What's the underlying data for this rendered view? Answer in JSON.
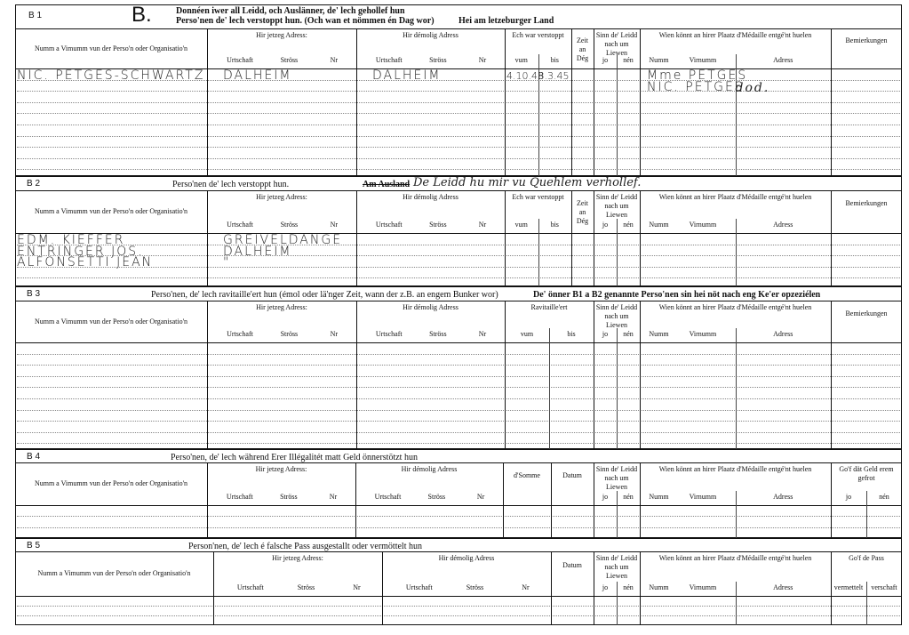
{
  "sections": [
    {
      "label": "B 1",
      "letter": "B.",
      "title_lines": [
        "Donnéen iwer all Leidd, och Auslänner, de' lech gehollef hun",
        "Perso'nen de' lech verstoppt hun. (Och wan et nömmen én Dag wor)"
      ],
      "subtitle": "Hei am letzeburger Land",
      "columns": [
        {
          "label": "Numm a Vimumm vun der Perso'n oder Organisatio'n",
          "subs": []
        },
        {
          "label": "Hir jetzeg Adress:",
          "subs": [
            "Urtschaft",
            "Ströss",
            "Nr"
          ]
        },
        {
          "label": "Hir démolig Adress",
          "subs": [
            "Urtschaft",
            "Ströss",
            "Nr"
          ]
        },
        {
          "label": "Ech war verstoppt",
          "subs": [
            "vum",
            "bis"
          ]
        },
        {
          "label": "Zeit an Dég",
          "subs": []
        },
        {
          "label": "Sinn de' Leidd nach um Liewen",
          "subs": [
            "jo",
            "nén"
          ]
        },
        {
          "label": "Wien könnt an hirer Plaatz d'Médaille entgé'nt huelen",
          "subs": [
            "Numm",
            "Virnumm",
            "Adress"
          ]
        },
        {
          "label": "Bemierkungen",
          "subs": []
        }
      ],
      "entries": [
        {
          "row": 0,
          "col": 0,
          "text": "NIC. PETGES-SCHWARTZ"
        },
        {
          "row": 0,
          "col": 1,
          "text": "DALHEIM"
        },
        {
          "row": 0,
          "col": 2,
          "text": "DALHEIM"
        },
        {
          "row": 0,
          "col": 3,
          "text": "4.10.43"
        },
        {
          "row": 0,
          "col": 3.5,
          "text": "8.3.45"
        },
        {
          "row": 0,
          "col": 6,
          "text": "Mme PETGES"
        },
        {
          "row": 1,
          "col": 6,
          "text": "NIC. PETGES"
        },
        {
          "row": 1,
          "col": 6.5,
          "text": "dod."
        }
      ]
    },
    {
      "label": "B 2",
      "title": "Perso'nen de' lech verstoppt hun.",
      "struck": "Am Ausland",
      "handwritten_note": "De Leidd hu mir vu Quehlem verhollef.",
      "columns": [
        {
          "label": "Numm a Vimumm vun der Perso'n oder Organisatio'n",
          "subs": []
        },
        {
          "label": "Hir jetzeg Adress:",
          "subs": [
            "Urtschaft",
            "Ströss",
            "Nr"
          ]
        },
        {
          "label": "Hir démolig Adress",
          "subs": [
            "Urtschaft",
            "Ströss",
            "Nr"
          ]
        },
        {
          "label": "Ech war verstoppt",
          "subs": [
            "vum",
            "bis"
          ]
        },
        {
          "label": "Zeit an Dég",
          "subs": []
        },
        {
          "label": "Sinn de' Leidd nach um Liewen",
          "subs": [
            "jo",
            "nén"
          ]
        },
        {
          "label": "Wien könnt an hirer Plaatz d'Médaille entgé'nt huelen",
          "subs": [
            "Numm",
            "Virnumm",
            "Adress"
          ]
        },
        {
          "label": "Bemierkungen",
          "subs": []
        }
      ],
      "entries": [
        {
          "row": 0,
          "col": 0,
          "text": "EDM. KIEFFER"
        },
        {
          "row": 1,
          "col": 0,
          "text": "ENTRINGER JOS."
        },
        {
          "row": 2,
          "col": 0,
          "text": "ALFONSETTI JEAN"
        },
        {
          "row": 0,
          "col": 1,
          "text": "GREIVELDANGE"
        },
        {
          "row": 1,
          "col": 1,
          "text": "DALHEIM"
        },
        {
          "row": 2,
          "col": 1,
          "text": "\""
        }
      ]
    },
    {
      "label": "B 3",
      "title": "Perso'nen, de' lech ravitaille'ert hun (émol oder lä'nger Zeit, wann der z.B. an engem Bunker wor)",
      "note": "De' önner B1 a B2 genannte Perso'nen sin hei nöt nach eng Ke'er opzeziélen",
      "columns": [
        {
          "label": "Numm a Vimumm vun der Perso'n oder Organisatio'n",
          "subs": []
        },
        {
          "label": "Hir jetzeg Adress:",
          "subs": [
            "Urtschaft",
            "Ströss",
            "Nr"
          ]
        },
        {
          "label": "Hir démolig Adress",
          "subs": [
            "Urtschaft",
            "Ströss",
            "Nr"
          ]
        },
        {
          "label": "Ravitaille'ert",
          "subs": [
            "vum",
            "bis"
          ]
        },
        {
          "label": "Sinn de' Leidd nach um Liewen",
          "subs": [
            "jo",
            "nén"
          ]
        },
        {
          "label": "Wien könnt an hirer Plaatz d'Médaille entgé'nt huelen",
          "subs": [
            "Numm",
            "Virnumm",
            "Adress"
          ]
        },
        {
          "label": "Bemierkungen",
          "subs": []
        }
      ],
      "entries": []
    },
    {
      "label": "B 4",
      "title": "Perso'nen, de' lech während Erer Illégalitét matt Geld önnerstötzt hun",
      "columns": [
        {
          "label": "Numm a Vimumm vun der Perso'n oder Organisatio'n",
          "subs": []
        },
        {
          "label": "Hir jetzeg Adress:",
          "subs": [
            "Urtschaft",
            "Ströss",
            "Nr"
          ]
        },
        {
          "label": "Hir démolig Adress",
          "subs": [
            "Urtschaft",
            "Ströss",
            "Nr"
          ]
        },
        {
          "label": "d'Somme",
          "subs": []
        },
        {
          "label": "Datum",
          "subs": []
        },
        {
          "label": "Sinn de' Leidd nach um Liewen",
          "subs": [
            "jo",
            "nén"
          ]
        },
        {
          "label": "Wien könnt an hirer Plaatz d'Médaille entgé'nt huelen",
          "subs": [
            "Numm",
            "Virnumm",
            "Adress"
          ]
        },
        {
          "label": "Go'f dät Geld erem gefrot",
          "subs": [
            "jo",
            "nén"
          ]
        }
      ],
      "entries": []
    },
    {
      "label": "B 5",
      "title": "Person'nen, de' lech é falsche Pass ausgestallt oder vermöttelt hun",
      "columns": [
        {
          "label": "Numm a Vimumm vun der Perso'n oder Organisatio'n",
          "subs": []
        },
        {
          "label": "Hir jetzeg Adress:",
          "subs": [
            "Urtschaft",
            "Ströss",
            "Nr"
          ]
        },
        {
          "label": "Hir démolig Adress",
          "subs": [
            "Urtschaft",
            "Ströss",
            "Nr"
          ]
        },
        {
          "label": "Datum",
          "subs": []
        },
        {
          "label": "Sinn de' Leidd nach um Liewen",
          "subs": [
            "jo",
            "nén"
          ]
        },
        {
          "label": "Wien könnt an hirer Plaatz d'Médaille entgé'nt huelen",
          "subs": [
            "Numm",
            "Virnumm",
            "Adress"
          ]
        },
        {
          "label": "Go'f de Pass",
          "subs": [
            "vermettelt",
            "verschaft"
          ]
        }
      ],
      "entries": []
    }
  ]
}
